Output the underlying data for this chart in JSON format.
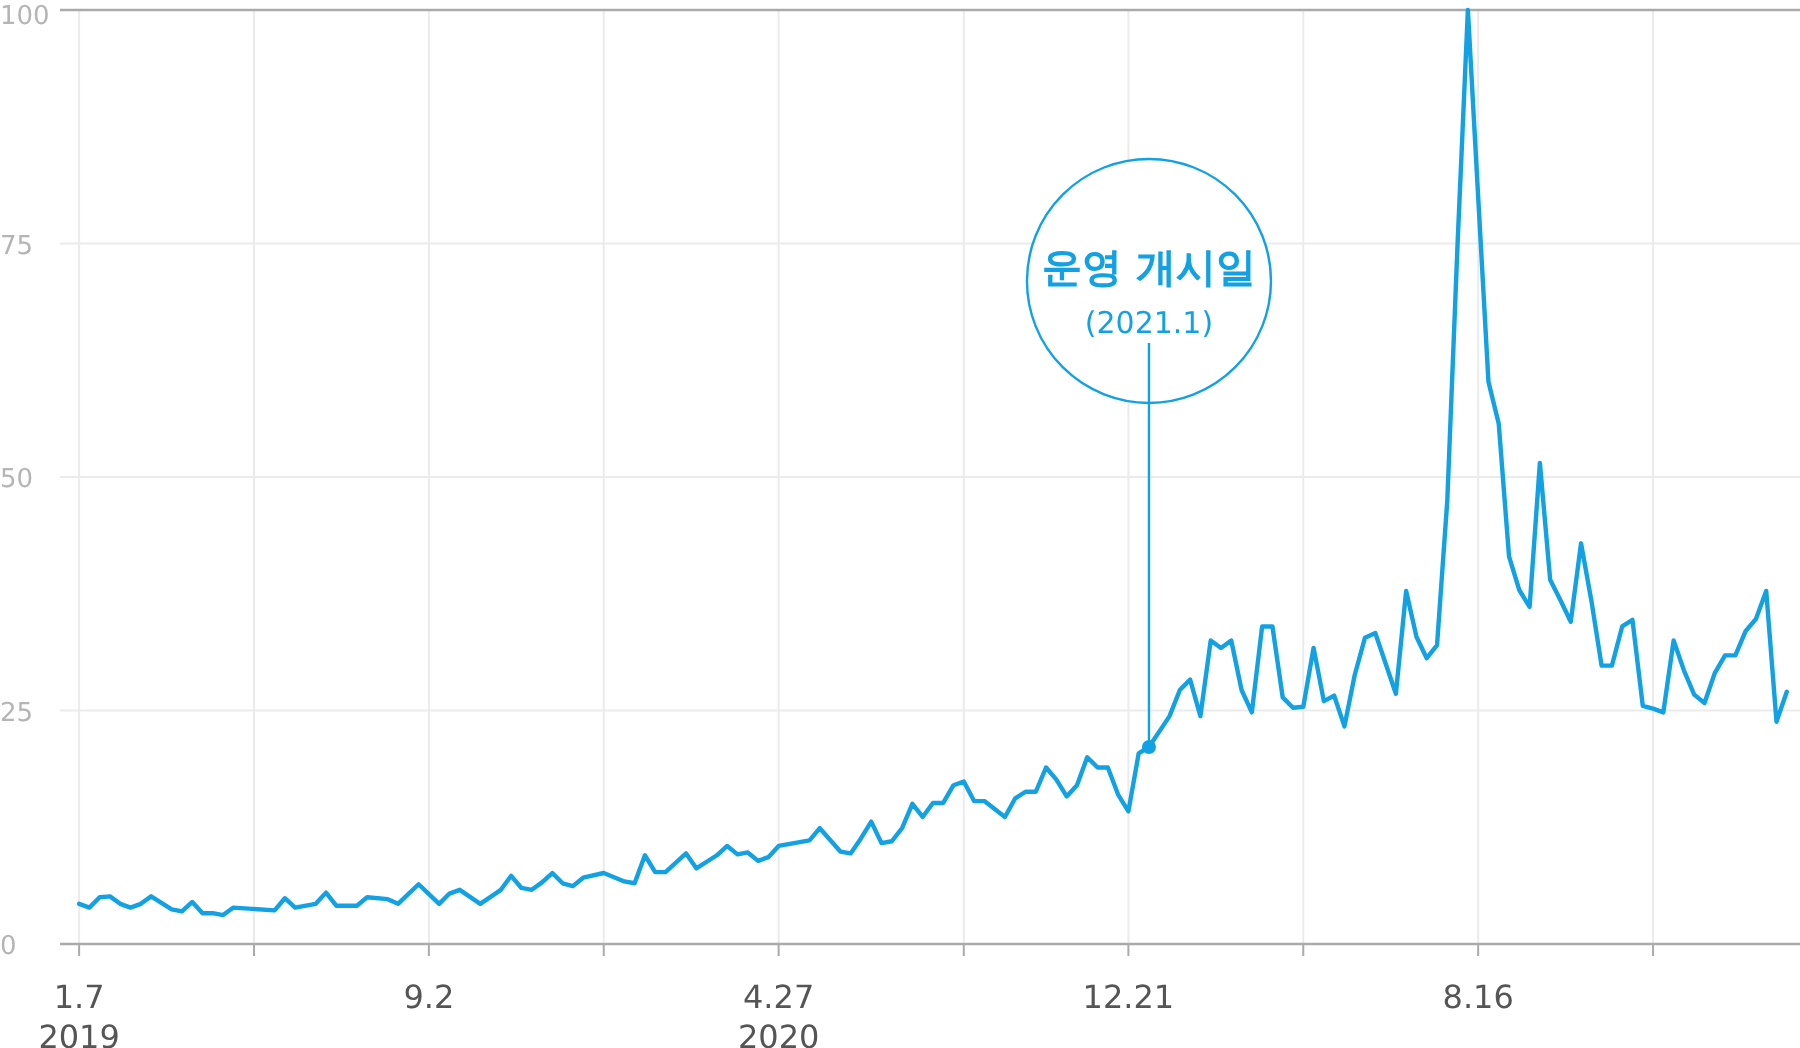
{
  "chart_data": {
    "type": "line",
    "x": [
      "2019-01-07",
      "2019-01-14",
      "2019-01-21",
      "2019-01-28",
      "2019-02-04",
      "2019-02-11",
      "2019-02-18",
      "2019-02-25",
      "2019-03-11",
      "2019-03-18",
      "2019-03-25",
      "2019-04-01",
      "2019-04-08",
      "2019-04-15",
      "2019-04-22",
      "2019-05-20",
      "2019-05-27",
      "2019-06-03",
      "2019-06-17",
      "2019-06-24",
      "2019-07-01",
      "2019-07-15",
      "2019-07-22",
      "2019-08-05",
      "2019-08-12",
      "2019-08-26",
      "2019-09-09",
      "2019-09-16",
      "2019-09-23",
      "2019-10-07",
      "2019-10-21",
      "2019-10-28",
      "2019-11-04",
      "2019-11-11",
      "2019-11-18",
      "2019-11-25",
      "2019-12-02",
      "2019-12-09",
      "2019-12-16",
      "2019-12-30",
      "2020-01-13",
      "2020-01-20",
      "2020-01-27",
      "2020-02-03",
      "2020-02-10",
      "2020-02-24",
      "2020-03-02",
      "2020-03-16",
      "2020-03-23",
      "2020-03-30",
      "2020-04-06",
      "2020-04-13",
      "2020-04-20",
      "2020-04-27",
      "2020-05-18",
      "2020-05-25",
      "2020-06-08",
      "2020-06-15",
      "2020-06-22",
      "2020-06-29",
      "2020-07-06",
      "2020-07-13",
      "2020-07-20",
      "2020-07-27",
      "2020-08-03",
      "2020-08-10",
      "2020-08-17",
      "2020-08-24",
      "2020-08-31",
      "2020-09-07",
      "2020-09-14",
      "2020-09-28",
      "2020-10-05",
      "2020-10-12",
      "2020-10-19",
      "2020-10-26",
      "2020-11-02",
      "2020-11-09",
      "2020-11-16",
      "2020-11-23",
      "2020-11-30",
      "2020-12-07",
      "2020-12-14",
      "2020-12-21",
      "2020-12-28",
      "2021-01-04",
      "2021-01-18",
      "2021-01-25",
      "2021-02-01",
      "2021-02-08",
      "2021-02-15",
      "2021-02-22",
      "2021-03-01",
      "2021-03-08",
      "2021-03-15",
      "2021-03-22",
      "2021-03-29",
      "2021-04-05",
      "2021-04-12",
      "2021-04-19",
      "2021-04-26",
      "2021-05-03",
      "2021-05-10",
      "2021-05-17",
      "2021-05-24",
      "2021-05-31",
      "2021-06-07",
      "2021-06-21",
      "2021-06-28",
      "2021-07-05",
      "2021-07-12",
      "2021-07-19",
      "2021-07-26",
      "2021-08-02",
      "2021-08-09",
      "2021-08-16",
      "2021-08-23",
      "2021-08-30",
      "2021-09-06",
      "2021-09-13",
      "2021-09-20",
      "2021-09-27",
      "2021-10-04",
      "2021-10-11",
      "2021-10-18",
      "2021-10-25",
      "2021-11-01",
      "2021-11-08",
      "2021-11-15",
      "2021-11-22",
      "2021-11-29",
      "2021-12-06",
      "2021-12-13",
      "2021-12-20",
      "2021-12-27",
      "2022-01-03",
      "2022-01-10",
      "2022-01-17",
      "2022-01-24",
      "2022-01-31",
      "2022-02-07",
      "2022-02-14",
      "2022-02-21",
      "2022-02-28",
      "2022-03-07",
      "2022-03-14"
    ],
    "series": [
      {
        "color": "#12a1e3",
        "values": [
          4.3,
          3.9,
          5.0,
          5.1,
          4.3,
          3.9,
          4.3,
          5.1,
          3.7,
          3.5,
          4.5,
          3.3,
          3.3,
          3.1,
          3.9,
          3.6,
          4.9,
          3.9,
          4.3,
          5.5,
          4.1,
          4.1,
          5.0,
          4.8,
          4.3,
          6.4,
          4.3,
          5.4,
          5.8,
          4.3,
          5.8,
          7.3,
          6.0,
          5.8,
          6.6,
          7.6,
          6.5,
          6.2,
          7.1,
          7.6,
          6.7,
          6.5,
          9.5,
          7.7,
          7.7,
          9.7,
          8.1,
          9.5,
          10.5,
          9.6,
          9.8,
          8.9,
          9.3,
          10.5,
          11.1,
          12.4,
          9.9,
          9.7,
          11.3,
          13.1,
          10.8,
          11.0,
          12.4,
          15.0,
          13.6,
          15.1,
          15.1,
          17.0,
          17.4,
          15.3,
          15.3,
          13.6,
          15.6,
          16.3,
          16.3,
          18.9,
          17.6,
          15.8,
          17.0,
          20.0,
          18.9,
          18.9,
          16.0,
          14.2,
          20.4,
          21.1,
          24.4,
          27.2,
          28.3,
          24.4,
          32.5,
          31.7,
          32.5,
          27.2,
          24.8,
          34.0,
          34.0,
          26.4,
          25.3,
          25.4,
          31.7,
          26.0,
          26.6,
          23.3,
          28.8,
          32.8,
          33.3,
          26.8,
          37.8,
          32.9,
          30.6,
          32.0,
          47.5,
          75,
          100,
          80,
          60.2,
          55.7,
          41.5,
          37.9,
          36.1,
          51.5,
          39.0,
          36.8,
          34.5,
          42.9,
          36.8,
          29.8,
          29.8,
          34.0,
          34.7,
          25.5,
          25.2,
          24.8,
          32.5,
          29.3,
          26.7,
          25.8,
          29.0,
          30.9,
          30.9,
          33.5,
          34.8,
          37.8,
          23.8,
          27.0
        ]
      }
    ],
    "xlim": [
      "2018-12-25",
      "2022-03-23"
    ],
    "xticks": [
      {
        "value": "2019-01-07",
        "label": "1.7\n2019"
      },
      {
        "value": "2019-05-06",
        "label": null
      },
      {
        "value": "2019-09-02",
        "label": "9.2"
      },
      {
        "value": "2019-12-30",
        "label": null
      },
      {
        "value": "2020-04-27",
        "label": "4.27\n2020"
      },
      {
        "value": "2020-08-31",
        "label": null
      },
      {
        "value": "2020-12-21",
        "label": "12.21"
      },
      {
        "value": "2021-04-19",
        "label": null
      },
      {
        "value": "2021-08-16",
        "label": "8.16"
      },
      {
        "value": "2021-12-13",
        "label": null
      }
    ],
    "ylim": [
      0,
      100
    ],
    "yticks": [
      0,
      25,
      50,
      75,
      100
    ],
    "grid": true,
    "annotations": [
      {
        "text": "운영 개시일\n(2021.1)",
        "x": "2021-01-04",
        "y": 21.1
      }
    ]
  }
}
